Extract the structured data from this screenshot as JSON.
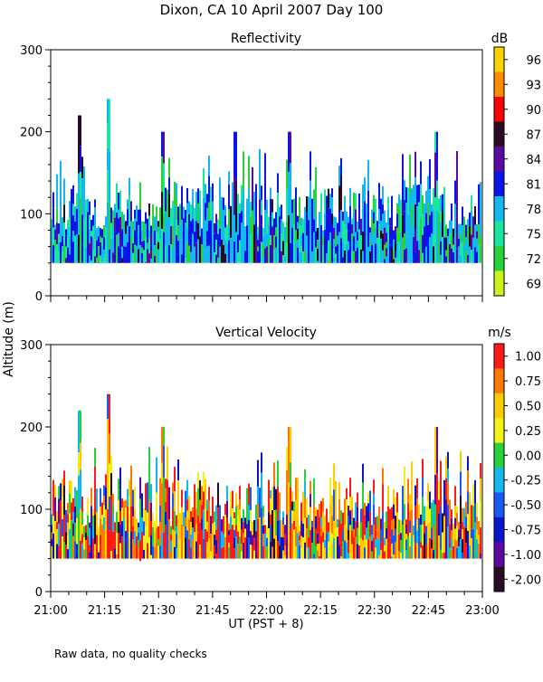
{
  "figure": {
    "title": "Dixon, CA 10 April 2007  Day 100",
    "ylabel": "Altitude (m)",
    "xlabel": "UT  (PST + 8)",
    "footnote": "Raw data, no quality checks",
    "x_ticks": [
      "21:00",
      "21:15",
      "21:30",
      "21:45",
      "22:00",
      "22:15",
      "22:30",
      "22:45",
      "23:00"
    ]
  },
  "chart_data": [
    {
      "type": "heatmap",
      "title": "Reflectivity",
      "x_range": [
        "21:00",
        "23:00"
      ],
      "xlabel": "UT  (PST + 8)",
      "ylabel": "Altitude (m)",
      "ylim": [
        0,
        300
      ],
      "y_ticks": [
        0,
        100,
        200,
        300
      ],
      "colorbar": {
        "unit": "dB",
        "tick_labels": [
          "96",
          "93",
          "90",
          "87",
          "84",
          "81",
          "78",
          "75",
          "72",
          "69"
        ],
        "colors": [
          "#ffd400",
          "#ff8c00",
          "#ff0000",
          "#2a0b24",
          "#5a0aa0",
          "#0a14e6",
          "#12b8ee",
          "#19e6a0",
          "#2ad23a",
          "#c8f21a"
        ]
      },
      "echo_base_m": 40,
      "typical_top_m": 100,
      "peaks_m": [
        {
          "time": "21:08",
          "altitude": 220
        },
        {
          "time": "21:16",
          "altitude": 240
        },
        {
          "time": "21:31",
          "altitude": 200
        },
        {
          "time": "21:51",
          "altitude": 200
        },
        {
          "time": "22:06",
          "altitude": 200
        },
        {
          "time": "22:47",
          "altitude": 200
        }
      ]
    },
    {
      "type": "heatmap",
      "title": "Vertical Velocity",
      "x_range": [
        "21:00",
        "23:00"
      ],
      "xlabel": "UT  (PST + 8)",
      "ylabel": "Altitude (m)",
      "ylim": [
        0,
        300
      ],
      "y_ticks": [
        0,
        100,
        200,
        300
      ],
      "colorbar": {
        "unit": "m/s",
        "tick_labels": [
          "1.00",
          "0.75",
          "0.50",
          "0.25",
          "0.00",
          "-0.25",
          "-0.50",
          "-0.75",
          "-1.00",
          "-2.00"
        ],
        "colors": [
          "#ff1a1a",
          "#ff7a00",
          "#ffcc00",
          "#f2f21a",
          "#2ad23a",
          "#12b8ee",
          "#1a5af0",
          "#0a14c8",
          "#5a0aa0",
          "#2a0b24"
        ]
      },
      "echo_base_m": 40,
      "typical_top_m": 100,
      "peaks_m": [
        {
          "time": "21:08",
          "altitude": 220
        },
        {
          "time": "21:16",
          "altitude": 240
        },
        {
          "time": "21:31",
          "altitude": 200
        },
        {
          "time": "22:06",
          "altitude": 200
        },
        {
          "time": "22:47",
          "altitude": 200
        }
      ]
    }
  ]
}
